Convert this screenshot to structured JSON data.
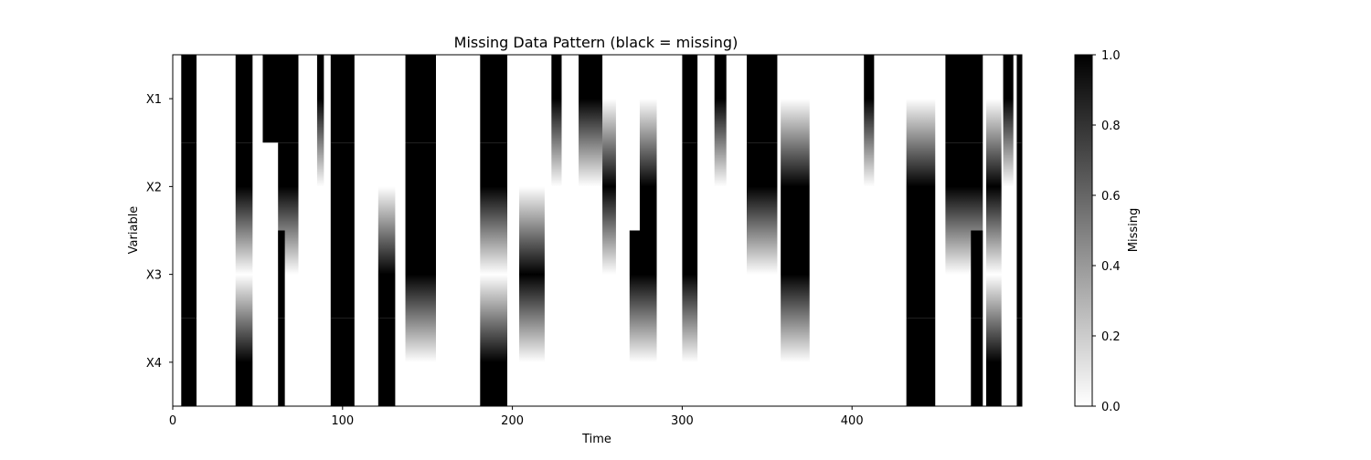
{
  "chart_data": {
    "type": "heatmap",
    "title": "Missing Data Pattern (black = missing)",
    "xlabel": "Time",
    "ylabel": "Variable",
    "colorbar_label": "Missing",
    "interpolation": "bilinear",
    "colormap": [
      "#ffffff",
      "#000000"
    ],
    "variables": [
      "X1",
      "X2",
      "X3",
      "X4"
    ],
    "xlim": [
      0,
      500
    ],
    "xticks": [
      "0",
      "100",
      "200",
      "300",
      "400"
    ],
    "xtick_values": [
      0,
      100,
      200,
      300,
      400
    ],
    "value_range": [
      0,
      1
    ],
    "colorbar_ticks": [
      "0.0",
      "0.2",
      "0.4",
      "0.6",
      "0.8",
      "1.0"
    ],
    "colorbar_tick_values": [
      0,
      0.2,
      0.4,
      0.6,
      0.8,
      1.0
    ],
    "missing_intervals": [
      {
        "variable": "X1",
        "start": 5,
        "end": 14
      },
      {
        "variable": "X1",
        "start": 37,
        "end": 47
      },
      {
        "variable": "X1",
        "start": 53,
        "end": 74
      },
      {
        "variable": "X1",
        "start": 85,
        "end": 89
      },
      {
        "variable": "X1",
        "start": 93,
        "end": 107
      },
      {
        "variable": "X1",
        "start": 137,
        "end": 155
      },
      {
        "variable": "X1",
        "start": 181,
        "end": 197
      },
      {
        "variable": "X1",
        "start": 223,
        "end": 229
      },
      {
        "variable": "X1",
        "start": 239,
        "end": 253
      },
      {
        "variable": "X1",
        "start": 300,
        "end": 309
      },
      {
        "variable": "X1",
        "start": 319,
        "end": 326
      },
      {
        "variable": "X1",
        "start": 338,
        "end": 356
      },
      {
        "variable": "X1",
        "start": 407,
        "end": 413
      },
      {
        "variable": "X1",
        "start": 455,
        "end": 477
      },
      {
        "variable": "X1",
        "start": 489,
        "end": 495
      },
      {
        "variable": "X1",
        "start": 497,
        "end": 500
      },
      {
        "variable": "X2",
        "start": 5,
        "end": 14
      },
      {
        "variable": "X2",
        "start": 37,
        "end": 47
      },
      {
        "variable": "X2",
        "start": 62,
        "end": 74
      },
      {
        "variable": "X2",
        "start": 93,
        "end": 107
      },
      {
        "variable": "X2",
        "start": 137,
        "end": 155
      },
      {
        "variable": "X2",
        "start": 181,
        "end": 197
      },
      {
        "variable": "X2",
        "start": 253,
        "end": 261
      },
      {
        "variable": "X2",
        "start": 275,
        "end": 285
      },
      {
        "variable": "X2",
        "start": 300,
        "end": 309
      },
      {
        "variable": "X2",
        "start": 338,
        "end": 356
      },
      {
        "variable": "X2",
        "start": 358,
        "end": 375
      },
      {
        "variable": "X2",
        "start": 432,
        "end": 449
      },
      {
        "variable": "X2",
        "start": 455,
        "end": 477
      },
      {
        "variable": "X2",
        "start": 479,
        "end": 488
      },
      {
        "variable": "X2",
        "start": 497,
        "end": 500
      },
      {
        "variable": "X3",
        "start": 5,
        "end": 14
      },
      {
        "variable": "X3",
        "start": 62,
        "end": 66
      },
      {
        "variable": "X3",
        "start": 93,
        "end": 107
      },
      {
        "variable": "X3",
        "start": 121,
        "end": 131
      },
      {
        "variable": "X3",
        "start": 137,
        "end": 155
      },
      {
        "variable": "X3",
        "start": 204,
        "end": 219
      },
      {
        "variable": "X3",
        "start": 269,
        "end": 285
      },
      {
        "variable": "X3",
        "start": 300,
        "end": 309
      },
      {
        "variable": "X3",
        "start": 358,
        "end": 375
      },
      {
        "variable": "X3",
        "start": 432,
        "end": 449
      },
      {
        "variable": "X3",
        "start": 470,
        "end": 477
      },
      {
        "variable": "X3",
        "start": 497,
        "end": 500
      },
      {
        "variable": "X4",
        "start": 5,
        "end": 14
      },
      {
        "variable": "X4",
        "start": 37,
        "end": 47
      },
      {
        "variable": "X4",
        "start": 62,
        "end": 66
      },
      {
        "variable": "X4",
        "start": 93,
        "end": 107
      },
      {
        "variable": "X4",
        "start": 121,
        "end": 131
      },
      {
        "variable": "X4",
        "start": 181,
        "end": 197
      },
      {
        "variable": "X4",
        "start": 432,
        "end": 449
      },
      {
        "variable": "X4",
        "start": 470,
        "end": 477
      },
      {
        "variable": "X4",
        "start": 479,
        "end": 488
      },
      {
        "variable": "X4",
        "start": 497,
        "end": 500
      }
    ]
  }
}
